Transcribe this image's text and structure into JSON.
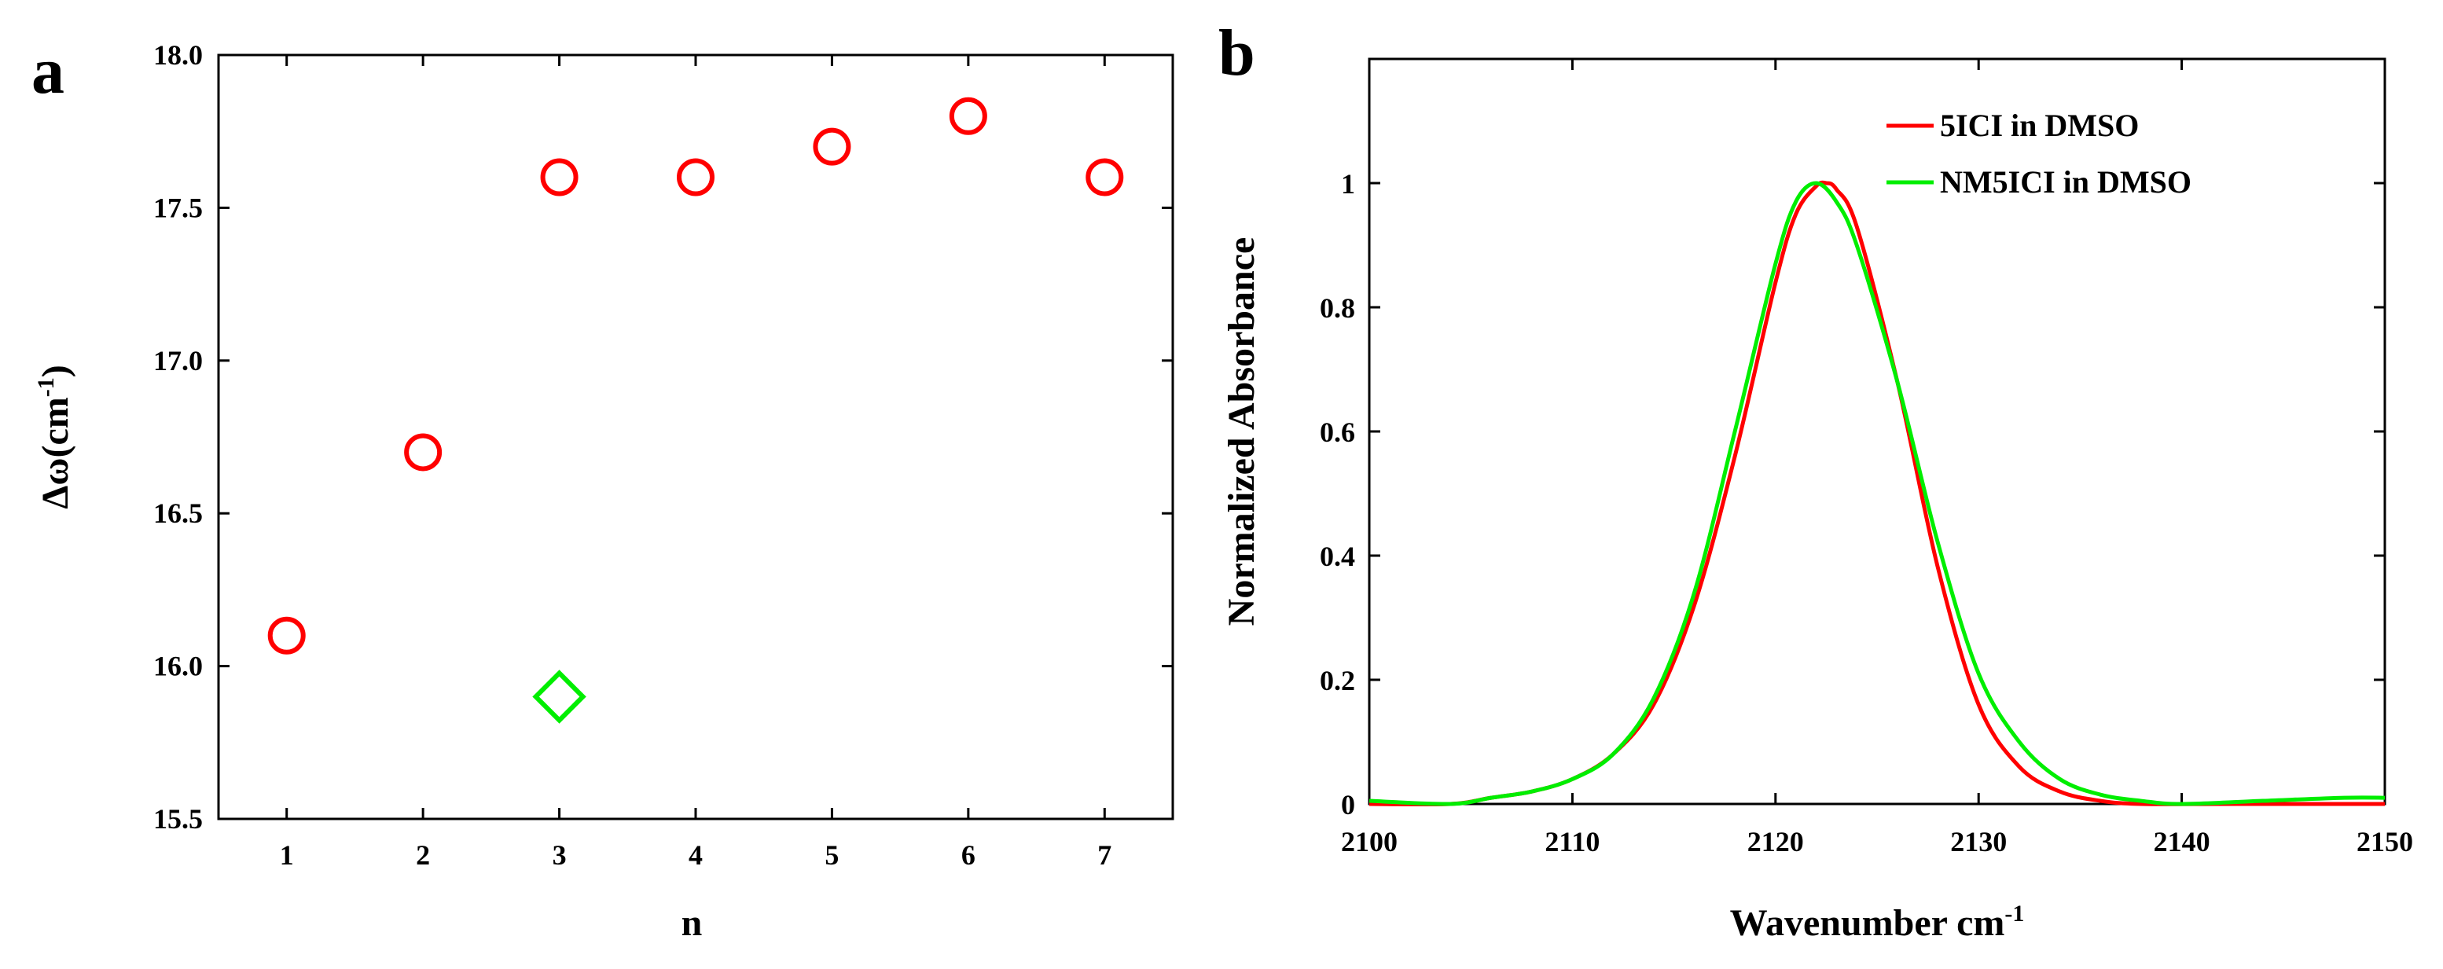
{
  "chart_data": [
    {
      "panel": "a",
      "type": "scatter",
      "xlabel": "n",
      "ylabel_main": "Δω(cm",
      "ylabel_sup": "-1",
      "ylabel_close": ")",
      "xlim": [
        0.5,
        7.5
      ],
      "ylim": [
        15.5,
        18.0
      ],
      "x_ticks": [
        1,
        2,
        3,
        4,
        5,
        6,
        7
      ],
      "x_tick_labels": [
        "1",
        "2",
        "3",
        "4",
        "5",
        "6",
        "7"
      ],
      "y_ticks": [
        15.5,
        16.0,
        16.5,
        17.0,
        17.5,
        18.0
      ],
      "y_tick_labels": [
        "15.5",
        "16.0",
        "16.5",
        "17.0",
        "17.5",
        "18.0"
      ],
      "series": [
        {
          "name": "red circles",
          "marker": "circle",
          "color": "#ff0000",
          "x": [
            1,
            2,
            3,
            4,
            5,
            6,
            7
          ],
          "y": [
            16.1,
            16.7,
            17.6,
            17.6,
            17.7,
            17.8,
            17.6
          ]
        },
        {
          "name": "green diamond",
          "marker": "diamond",
          "color": "#00ee00",
          "x": [
            3
          ],
          "y": [
            15.9
          ]
        }
      ]
    },
    {
      "panel": "b",
      "type": "line",
      "xlabel_main": "Wavenumber cm",
      "xlabel_sup": "-1",
      "ylabel": "Normalized Absorbance",
      "xlim": [
        2100,
        2150
      ],
      "ylim": [
        0,
        1.2
      ],
      "x_ticks": [
        2100,
        2110,
        2120,
        2130,
        2140,
        2150
      ],
      "x_tick_labels": [
        "2100",
        "2110",
        "2120",
        "2130",
        "2140",
        "2150"
      ],
      "y_ticks": [
        0,
        0.2,
        0.4,
        0.6,
        0.8,
        1.0
      ],
      "y_tick_labels": [
        "0",
        "0.2",
        "0.4",
        "0.6",
        "0.8",
        "1"
      ],
      "legend_position": "top-right",
      "series": [
        {
          "name": "5ICI in DMSO",
          "color": "#ff0000",
          "x": [
            2100,
            2104,
            2106,
            2108,
            2110,
            2112,
            2114,
            2116,
            2118,
            2120,
            2121,
            2122,
            2122.5,
            2123,
            2124,
            2126,
            2128,
            2130,
            2132,
            2134,
            2136,
            2138,
            2142,
            2146,
            2150
          ],
          "y": [
            0,
            0.0,
            0.01,
            0.02,
            0.04,
            0.08,
            0.16,
            0.32,
            0.56,
            0.84,
            0.95,
            0.995,
            1.0,
            0.99,
            0.93,
            0.68,
            0.38,
            0.16,
            0.06,
            0.02,
            0.005,
            0.0,
            0.0,
            0.0,
            0.0
          ]
        },
        {
          "name": "NM5ICI in DMSO",
          "color": "#00ee00",
          "x": [
            2100,
            2104,
            2106,
            2108,
            2110,
            2112,
            2114,
            2116,
            2118,
            2120,
            2121,
            2122,
            2123,
            2124,
            2126,
            2128,
            2130,
            2132,
            2134,
            2136,
            2138,
            2140,
            2144,
            2148,
            2150
          ],
          "y": [
            0.005,
            0.0,
            0.01,
            0.02,
            0.04,
            0.08,
            0.17,
            0.34,
            0.6,
            0.87,
            0.97,
            1.0,
            0.97,
            0.9,
            0.68,
            0.42,
            0.21,
            0.1,
            0.04,
            0.015,
            0.005,
            0.0,
            0.005,
            0.01,
            0.01
          ]
        }
      ]
    }
  ]
}
